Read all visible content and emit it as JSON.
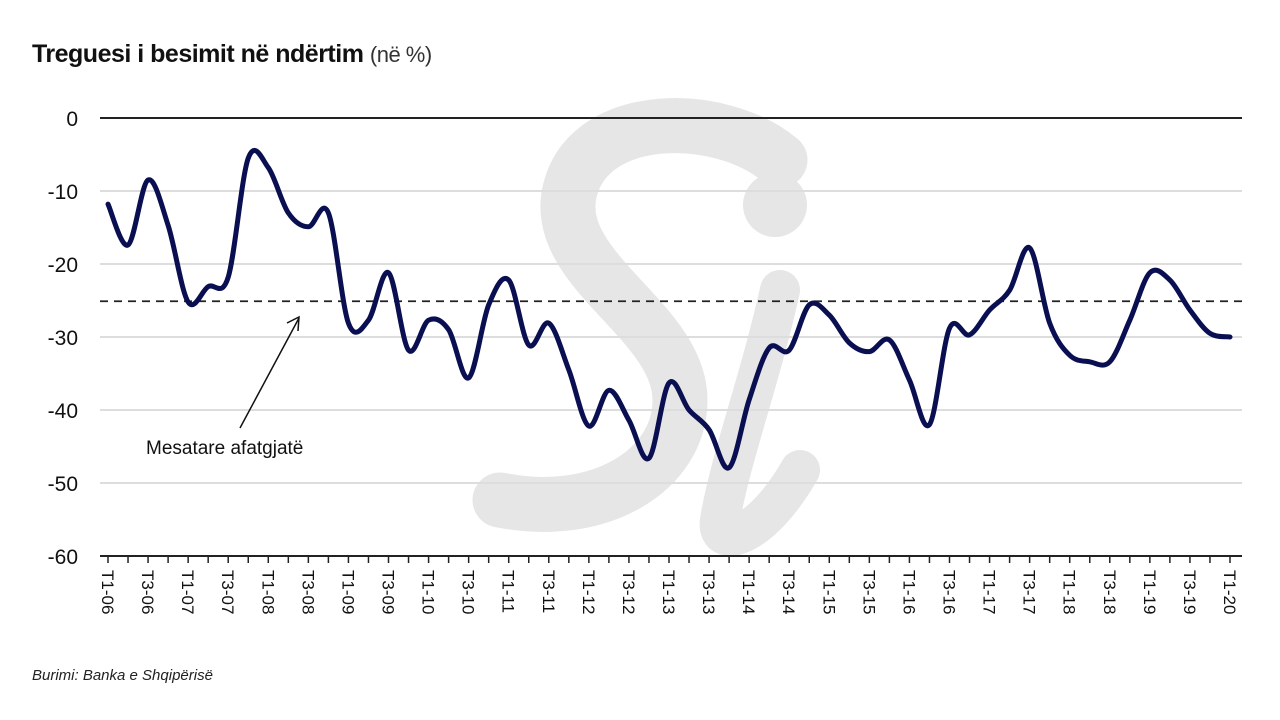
{
  "title": {
    "main": "Treguesi i besimit në ndërtim",
    "unit": "(në %)"
  },
  "source": "Burimi: Banka e Shqipërisë",
  "watermark": "Si",
  "colors": {
    "series": "#0a0f52",
    "average": "#222222",
    "grid": "#dddddd",
    "watermark": "#e6e6e6"
  },
  "chart_data": {
    "type": "line",
    "title": "Treguesi i besimit në ndërtim (në %)",
    "xlabel": "",
    "ylabel": "",
    "ylim": [
      -60,
      0
    ],
    "yticks": [
      "0",
      "-10",
      "-20",
      "-30",
      "-40",
      "-50",
      "-60"
    ],
    "ytick_values": [
      0,
      -10,
      -20,
      -30,
      -40,
      -50,
      -60
    ],
    "grid": true,
    "xtick_labels": [
      "T1-06",
      "T3-06",
      "T1-07",
      "T3-07",
      "T1-08",
      "T3-08",
      "T1-09",
      "T3-09",
      "T1-10",
      "T3-10",
      "T1-11",
      "T3-11",
      "T1-12",
      "T3-12",
      "T1-13",
      "T3-13",
      "T1-14",
      "T3-14",
      "T1-15",
      "T3-15",
      "T1-16",
      "T3-16",
      "T1-17",
      "T3-17",
      "T1-18",
      "T3-18",
      "T1-19",
      "T3-19",
      "T1-20"
    ],
    "series": [
      {
        "name": "Treguesi i besimit në ndërtim",
        "values": [
          -11.8,
          -17.4,
          -8.5,
          -14.7,
          -25.2,
          -23.1,
          -21.8,
          -5.5,
          -6.8,
          -13.0,
          -14.9,
          -13.0,
          -28.1,
          -27.7,
          -21.2,
          -31.8,
          -27.7,
          -29.0,
          -35.6,
          -25.6,
          -22.2,
          -31.1,
          -28.1,
          -34.5,
          -42.2,
          -37.3,
          -41.4,
          -46.6,
          -36.3,
          -40.0,
          -42.7,
          -47.9,
          -38.6,
          -31.5,
          -31.8,
          -25.6,
          -27.0,
          -30.8,
          -32.0,
          -30.4,
          -35.9,
          -42.0,
          -28.8,
          -29.7,
          -26.3,
          -23.6,
          -17.8,
          -28.1,
          -32.5,
          -33.4,
          -33.4,
          -27.7,
          -21.2,
          -22.2,
          -26.3,
          -29.5,
          -30.0
        ]
      }
    ],
    "reference_line": {
      "label": "Mesatare afatgjatë",
      "value": -25.1,
      "style": "dashed"
    }
  }
}
